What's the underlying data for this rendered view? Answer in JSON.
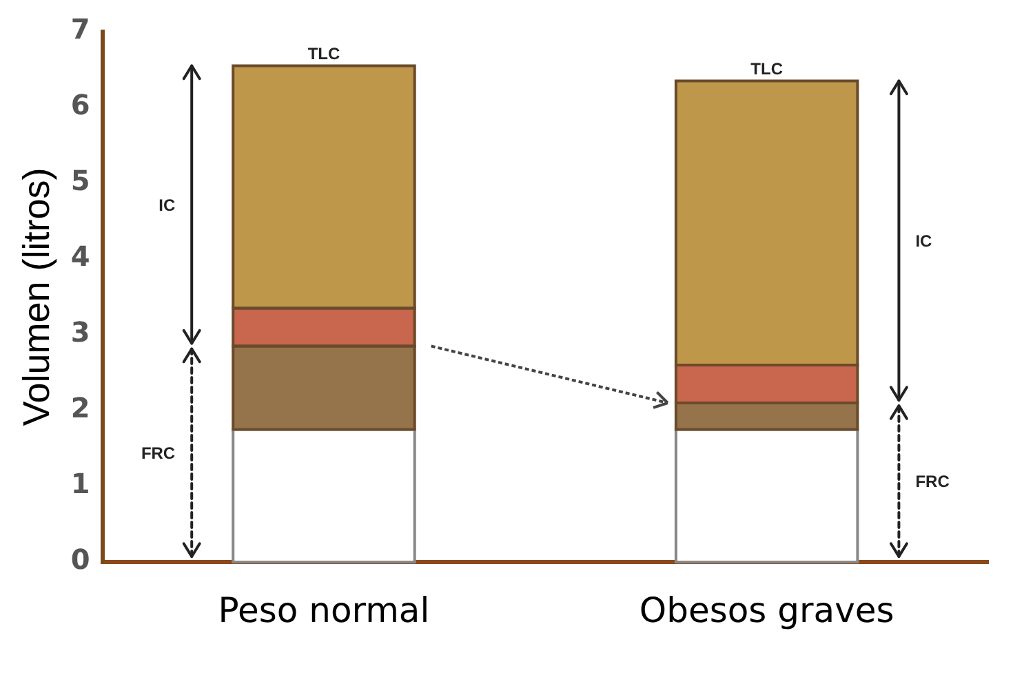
{
  "chart_data": {
    "type": "bar",
    "stacked": true,
    "ylabel": "Volumen (litros)",
    "categories": [
      "Peso normal",
      "Obesos graves"
    ],
    "series": [
      {
        "color": "#ffffff",
        "values": [
          1.75,
          1.75
        ]
      },
      {
        "color": "#95734b",
        "values": [
          1.1,
          0.35
        ]
      },
      {
        "color": "#c8664e",
        "values": [
          0.5,
          0.5
        ]
      },
      {
        "color": "#bf974b",
        "values": [
          3.2,
          3.75
        ]
      }
    ],
    "ylim": [
      0,
      7
    ],
    "yticks": [
      0,
      1,
      2,
      3,
      4,
      5,
      6,
      7
    ],
    "grid": false,
    "legend": false,
    "annotations": [
      {
        "text": "TLC",
        "x": "Peso normal",
        "y": 6.55
      },
      "IC",
      "FRC",
      {
        "text": "TLC",
        "x": "Obesos graves",
        "y": 6.35
      },
      "IC",
      "FRC"
    ]
  }
}
